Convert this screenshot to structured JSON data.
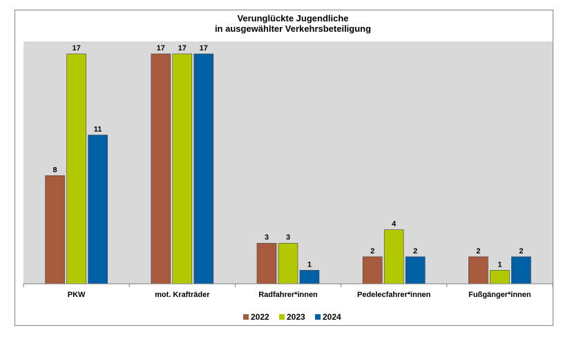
{
  "chart_data": {
    "type": "bar",
    "title": [
      "Verunglückte Jugendliche",
      "in ausgewählter Verkehrsbeteiligung"
    ],
    "categories": [
      "PKW",
      "mot. Krafträder",
      "Radfahrer*innen",
      "Pedelecfahrer*innen",
      "Fußgänger*innen"
    ],
    "series": [
      {
        "name": "2022",
        "color": "#A85A3C",
        "values": [
          8,
          17,
          3,
          2,
          2
        ]
      },
      {
        "name": "2023",
        "color": "#B2C800",
        "values": [
          17,
          17,
          3,
          4,
          1
        ]
      },
      {
        "name": "2024",
        "color": "#0060A6",
        "values": [
          11,
          17,
          1,
          2,
          2
        ]
      }
    ],
    "ylim": [
      0,
      17
    ],
    "grid": false,
    "legend": "bottom",
    "plot_background": "#D9D9D9"
  }
}
